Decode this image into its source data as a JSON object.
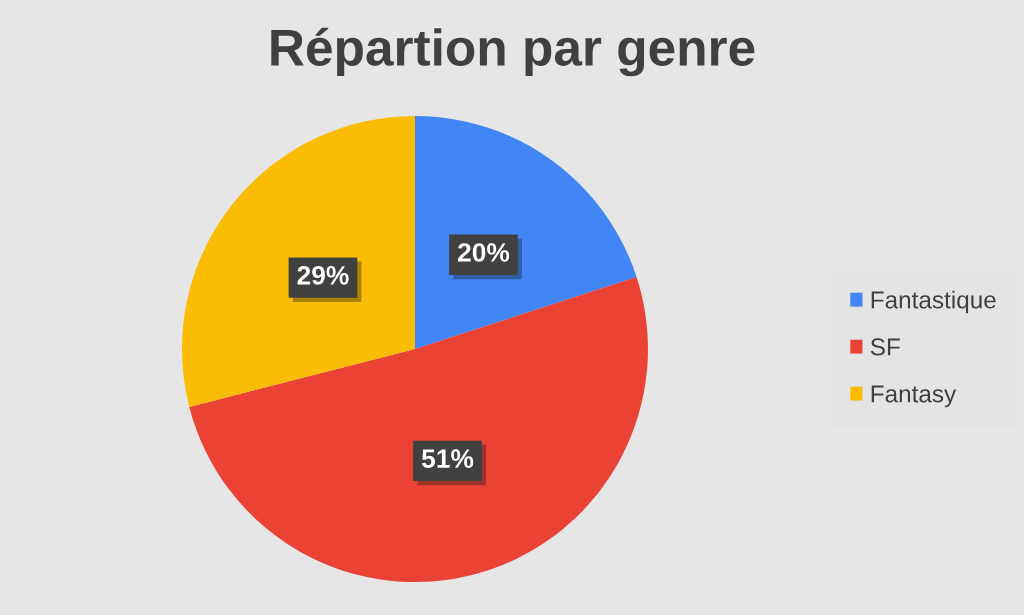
{
  "chart_data": {
    "type": "pie",
    "title": "Répartion par genre",
    "categories": [
      "Fantastique",
      "SF",
      "Fantasy"
    ],
    "values": [
      20,
      51,
      29
    ],
    "colors": [
      "#4285f4",
      "#ea4335",
      "#fbbc04"
    ],
    "value_labels": [
      "20%",
      "51%",
      "29%"
    ],
    "legend": "right"
  }
}
